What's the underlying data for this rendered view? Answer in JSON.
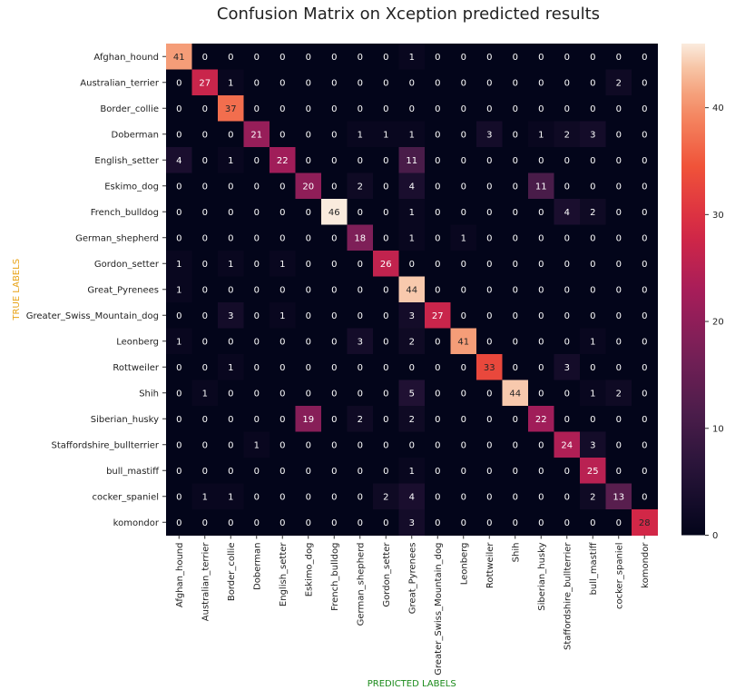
{
  "chart_data": {
    "type": "heatmap",
    "title": "Confusion Matrix on Xception predicted results",
    "xlabel": "PREDICTED LABELS",
    "ylabel": "TRUE LABELS",
    "xlabel_color": "#1a8a1a",
    "ylabel_color": "#e8a317",
    "labels": [
      "Afghan_hound",
      "Australian_terrier",
      "Border_collie",
      "Doberman",
      "English_setter",
      "Eskimo_dog",
      "French_bulldog",
      "German_shepherd",
      "Gordon_setter",
      "Great_Pyrenees",
      "Greater_Swiss_Mountain_dog",
      "Leonberg",
      "Rottweiler",
      "Shih",
      "Siberian_husky",
      "Staffordshire_bullterrier",
      "bull_mastiff",
      "cocker_spaniel",
      "komondor"
    ],
    "matrix": [
      [
        41,
        0,
        0,
        0,
        0,
        0,
        0,
        0,
        0,
        1,
        0,
        0,
        0,
        0,
        0,
        0,
        0,
        0,
        0
      ],
      [
        0,
        27,
        1,
        0,
        0,
        0,
        0,
        0,
        0,
        0,
        0,
        0,
        0,
        0,
        0,
        0,
        0,
        2,
        0
      ],
      [
        0,
        0,
        37,
        0,
        0,
        0,
        0,
        0,
        0,
        0,
        0,
        0,
        0,
        0,
        0,
        0,
        0,
        0,
        0
      ],
      [
        0,
        0,
        0,
        21,
        0,
        0,
        0,
        1,
        1,
        1,
        0,
        0,
        3,
        0,
        1,
        2,
        3,
        0,
        0
      ],
      [
        4,
        0,
        1,
        0,
        22,
        0,
        0,
        0,
        0,
        11,
        0,
        0,
        0,
        0,
        0,
        0,
        0,
        0,
        0
      ],
      [
        0,
        0,
        0,
        0,
        0,
        20,
        0,
        2,
        0,
        4,
        0,
        0,
        0,
        0,
        11,
        0,
        0,
        0,
        0
      ],
      [
        0,
        0,
        0,
        0,
        0,
        0,
        46,
        0,
        0,
        1,
        0,
        0,
        0,
        0,
        0,
        4,
        2,
        0,
        0
      ],
      [
        0,
        0,
        0,
        0,
        0,
        0,
        0,
        18,
        0,
        1,
        0,
        1,
        0,
        0,
        0,
        0,
        0,
        0,
        0
      ],
      [
        1,
        0,
        1,
        0,
        1,
        0,
        0,
        0,
        26,
        0,
        0,
        0,
        0,
        0,
        0,
        0,
        0,
        0,
        0
      ],
      [
        1,
        0,
        0,
        0,
        0,
        0,
        0,
        0,
        0,
        44,
        0,
        0,
        0,
        0,
        0,
        0,
        0,
        0,
        0
      ],
      [
        0,
        0,
        3,
        0,
        1,
        0,
        0,
        0,
        0,
        3,
        27,
        0,
        0,
        0,
        0,
        0,
        0,
        0,
        0
      ],
      [
        1,
        0,
        0,
        0,
        0,
        0,
        0,
        3,
        0,
        2,
        0,
        41,
        0,
        0,
        0,
        0,
        1,
        0,
        0
      ],
      [
        0,
        0,
        1,
        0,
        0,
        0,
        0,
        0,
        0,
        0,
        0,
        0,
        33,
        0,
        0,
        3,
        0,
        0,
        0
      ],
      [
        0,
        1,
        0,
        0,
        0,
        0,
        0,
        0,
        0,
        5,
        0,
        0,
        0,
        44,
        0,
        0,
        1,
        2,
        0
      ],
      [
        0,
        0,
        0,
        0,
        0,
        19,
        0,
        2,
        0,
        2,
        0,
        0,
        0,
        0,
        22,
        0,
        0,
        0,
        0
      ],
      [
        0,
        0,
        0,
        1,
        0,
        0,
        0,
        0,
        0,
        0,
        0,
        0,
        0,
        0,
        0,
        24,
        3,
        0,
        0
      ],
      [
        0,
        0,
        0,
        0,
        0,
        0,
        0,
        0,
        0,
        1,
        0,
        0,
        0,
        0,
        0,
        0,
        25,
        0,
        0
      ],
      [
        0,
        1,
        1,
        0,
        0,
        0,
        0,
        0,
        2,
        4,
        0,
        0,
        0,
        0,
        0,
        0,
        2,
        13,
        0
      ],
      [
        0,
        0,
        0,
        0,
        0,
        0,
        0,
        0,
        0,
        3,
        0,
        0,
        0,
        0,
        0,
        0,
        0,
        0,
        28
      ]
    ],
    "vmin": 0,
    "vmax": 46,
    "colorbar_ticks": [
      0,
      10,
      20,
      30,
      40
    ],
    "colormap": "rocket"
  }
}
